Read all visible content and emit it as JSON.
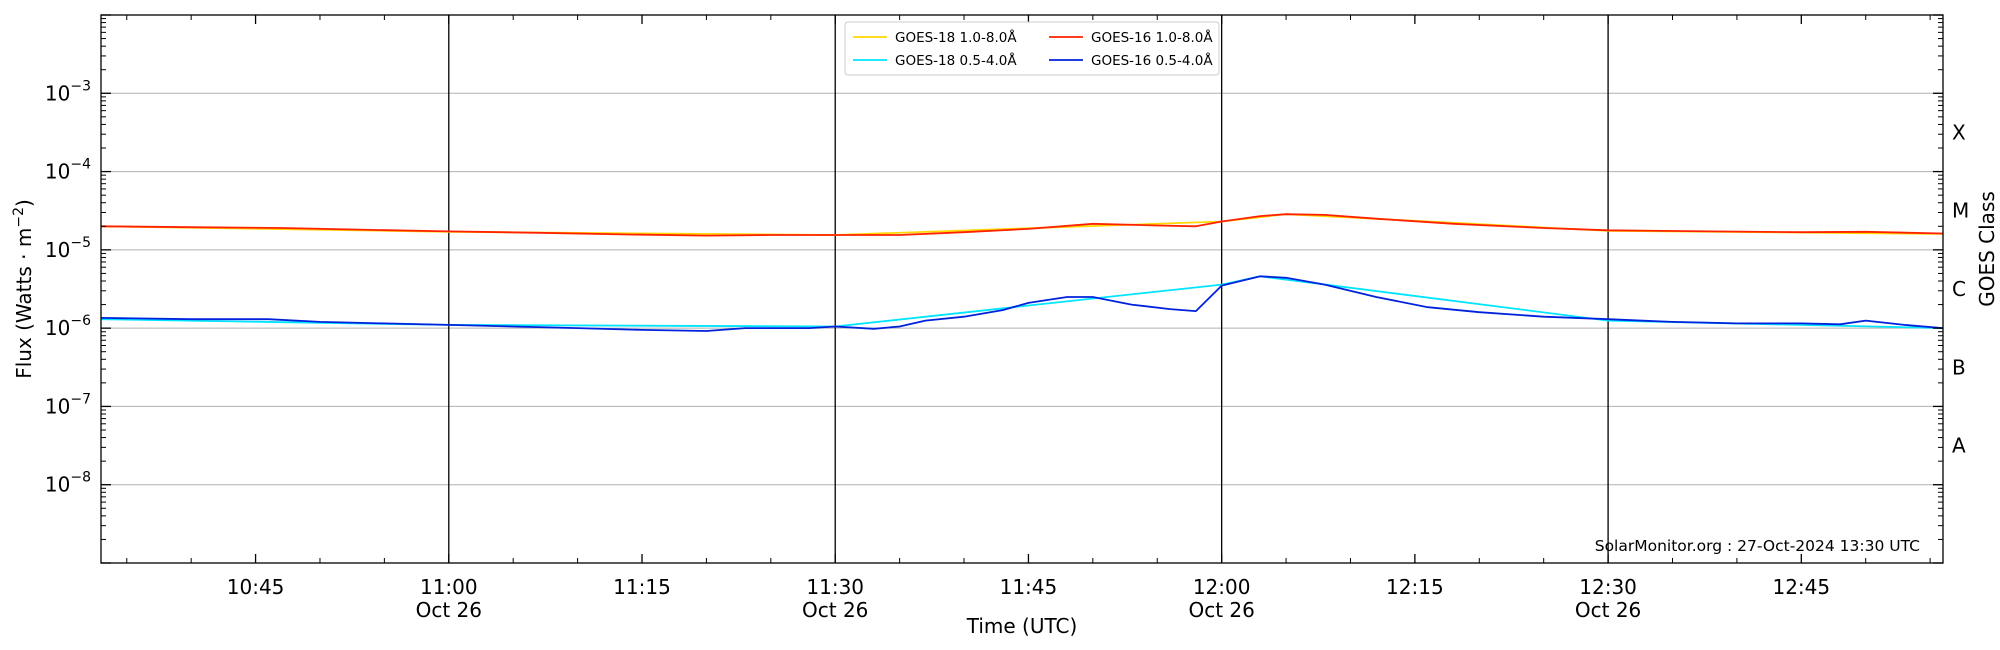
{
  "chart_data": {
    "type": "line",
    "xlabel": "Time (UTC)",
    "ylabel": "Flux (Watts · m",
    "ylabel_sup": "−2",
    "ylabel_close": ")",
    "ylabel_right": "GOES Class",
    "ylim": [
      1e-09,
      0.01
    ],
    "yscale": "log",
    "xlim": [
      "10:33",
      "12:56"
    ],
    "x_ticks": [
      {
        "t": "10:45",
        "label": "10:45",
        "sub": ""
      },
      {
        "t": "11:00",
        "label": "11:00",
        "sub": "Oct 26"
      },
      {
        "t": "11:15",
        "label": "11:15",
        "sub": ""
      },
      {
        "t": "11:30",
        "label": "11:30",
        "sub": "Oct 26"
      },
      {
        "t": "11:45",
        "label": "11:45",
        "sub": ""
      },
      {
        "t": "12:00",
        "label": "12:00",
        "sub": "Oct 26"
      },
      {
        "t": "12:15",
        "label": "12:15",
        "sub": ""
      },
      {
        "t": "12:30",
        "label": "12:30",
        "sub": "Oct 26"
      },
      {
        "t": "12:45",
        "label": "12:45",
        "sub": ""
      }
    ],
    "vlines": [
      "11:00",
      "11:30",
      "12:00",
      "12:30"
    ],
    "y_ticks": [
      {
        "value": 0.001,
        "base": "10",
        "exp": "−3"
      },
      {
        "value": 0.0001,
        "base": "10",
        "exp": "−4"
      },
      {
        "value": 1e-05,
        "base": "10",
        "exp": "−5"
      },
      {
        "value": 1e-06,
        "base": "10",
        "exp": "−6"
      },
      {
        "value": 1e-07,
        "base": "10",
        "exp": "−7"
      },
      {
        "value": 1e-08,
        "base": "10",
        "exp": "−8"
      }
    ],
    "goes_classes": [
      {
        "label": "X",
        "value": 0.000316
      },
      {
        "label": "M",
        "value": 3.16e-05
      },
      {
        "label": "C",
        "value": 3.16e-06
      },
      {
        "label": "B",
        "value": 3.16e-07
      },
      {
        "label": "A",
        "value": 3.16e-08
      }
    ],
    "grid": true,
    "legend_position": "top-center",
    "series": [
      {
        "name": "GOES-18 1.0-8.0Å",
        "color": "#ffd700",
        "x": [
          "10:33",
          "11:00",
          "11:30",
          "12:00",
          "12:05",
          "12:30",
          "12:56"
        ],
        "values": [
          2e-05,
          1.7e-05,
          1.55e-05,
          2.3e-05,
          2.85e-05,
          1.75e-05,
          1.6e-05
        ]
      },
      {
        "name": "GOES-18 0.5-4.0Å",
        "color": "#00e5ff",
        "x": [
          "10:33",
          "11:00",
          "11:30",
          "12:00",
          "12:03",
          "12:30",
          "12:56"
        ],
        "values": [
          1.3e-06,
          1.1e-06,
          1.05e-06,
          3.6e-06,
          4.6e-06,
          1.25e-06,
          1e-06
        ]
      },
      {
        "name": "GOES-16 1.0-8.0Å",
        "color": "#ff2200",
        "x": [
          "10:33",
          "10:40",
          "10:47",
          "10:54",
          "11:00",
          "11:07",
          "11:14",
          "11:20",
          "11:25",
          "11:30",
          "11:35",
          "11:40",
          "11:45",
          "11:50",
          "11:55",
          "11:58",
          "12:00",
          "12:03",
          "12:05",
          "12:08",
          "12:12",
          "12:18",
          "12:25",
          "12:30",
          "12:38",
          "12:45",
          "12:50",
          "12:56"
        ],
        "values": [
          2e-05,
          1.95e-05,
          1.9e-05,
          1.8e-05,
          1.72e-05,
          1.65e-05,
          1.57e-05,
          1.52e-05,
          1.55e-05,
          1.55e-05,
          1.55e-05,
          1.68e-05,
          1.85e-05,
          2.15e-05,
          2.05e-05,
          2e-05,
          2.3e-05,
          2.7e-05,
          2.85e-05,
          2.8e-05,
          2.5e-05,
          2.15e-05,
          1.9e-05,
          1.78e-05,
          1.72e-05,
          1.68e-05,
          1.7e-05,
          1.62e-05
        ]
      },
      {
        "name": "GOES-16 0.5-4.0Å",
        "color": "#0022dd",
        "x": [
          "10:33",
          "10:40",
          "10:46",
          "10:50",
          "10:55",
          "11:00",
          "11:05",
          "11:10",
          "11:15",
          "11:20",
          "11:23",
          "11:28",
          "11:30",
          "11:33",
          "11:35",
          "11:37",
          "11:40",
          "11:43",
          "11:45",
          "11:48",
          "11:50",
          "11:53",
          "11:56",
          "11:58",
          "12:00",
          "12:03",
          "12:05",
          "12:08",
          "12:12",
          "12:16",
          "12:20",
          "12:25",
          "12:30",
          "12:35",
          "12:40",
          "12:45",
          "12:48",
          "12:50",
          "12:53",
          "12:56"
        ],
        "values": [
          1.35e-06,
          1.3e-06,
          1.3e-06,
          1.2e-06,
          1.15e-06,
          1.1e-06,
          1.05e-06,
          1e-06,
          9.5e-07,
          9.2e-07,
          1e-06,
          1e-06,
          1.05e-06,
          9.8e-07,
          1.05e-06,
          1.25e-06,
          1.4e-06,
          1.7e-06,
          2.1e-06,
          2.5e-06,
          2.5e-06,
          2e-06,
          1.75e-06,
          1.65e-06,
          3.5e-06,
          4.6e-06,
          4.4e-06,
          3.6e-06,
          2.5e-06,
          1.85e-06,
          1.6e-06,
          1.4e-06,
          1.3e-06,
          1.2e-06,
          1.15e-06,
          1.15e-06,
          1.12e-06,
          1.25e-06,
          1.1e-06,
          1e-06
        ]
      }
    ],
    "legend_order": [
      0,
      1,
      2,
      3
    ],
    "credit": "SolarMonitor.org : 27-Oct-2024 13:30 UTC"
  }
}
